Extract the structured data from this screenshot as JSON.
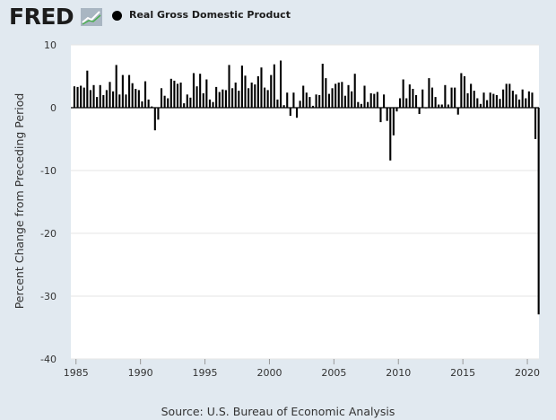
{
  "header": {
    "logo_text": "FRED",
    "legend_label": "Real Gross Domestic Product",
    "legend_color": "#000000"
  },
  "icons": {
    "logo": "fred-chart-logo-icon"
  },
  "source": "Source: U.S. Bureau of Economic Analysis",
  "chart_data": {
    "type": "bar",
    "xlabel": "",
    "ylabel": "Percent Change from Preceding Period",
    "ylim": [
      -40,
      10
    ],
    "yticks": [
      10,
      0,
      -10,
      -20,
      -30,
      -40
    ],
    "xlim": [
      1984.6,
      2020.9
    ],
    "xticks": [
      1985,
      1990,
      1995,
      2000,
      2005,
      2010,
      2015,
      2020
    ],
    "grid": true,
    "legend_position": "top-left",
    "bar_color": "#000000",
    "start_year": 1984,
    "start_quarter": 4,
    "series": [
      {
        "name": "Real Gross Domestic Product",
        "values": [
          3.4,
          3.3,
          3.5,
          3.2,
          5.9,
          2.8,
          3.6,
          1.7,
          3.6,
          2.0,
          2.8,
          4.1,
          2.6,
          6.8,
          2.1,
          5.2,
          2.1,
          5.2,
          3.9,
          3.0,
          2.8,
          1.0,
          4.2,
          1.3,
          0.2,
          -3.6,
          -1.9,
          3.1,
          1.9,
          1.5,
          4.6,
          4.3,
          3.8,
          4.0,
          0.7,
          2.1,
          1.6,
          5.5,
          3.4,
          5.4,
          2.3,
          4.5,
          1.3,
          0.9,
          3.3,
          2.5,
          2.9,
          2.8,
          6.8,
          3.1,
          4.0,
          2.7,
          6.7,
          5.1,
          3.1,
          4.0,
          3.7,
          5.0,
          6.4,
          3.2,
          2.8,
          5.2,
          6.9,
          1.3,
          7.5,
          0.4,
          2.4,
          -1.3,
          2.4,
          -1.6,
          1.1,
          3.5,
          2.4,
          1.7,
          0.3,
          2.1,
          2.0,
          7.0,
          4.7,
          2.2,
          3.1,
          3.8,
          4.0,
          4.1,
          1.9,
          3.6,
          2.6,
          5.4,
          0.9,
          0.6,
          3.5,
          0.9,
          2.3,
          2.2,
          2.5,
          -2.3,
          2.1,
          -2.1,
          -8.4,
          -4.4,
          -0.6,
          1.5,
          4.5,
          1.5,
          3.7,
          3.0,
          2.0,
          -1.0,
          2.9,
          -0.1,
          4.7,
          3.2,
          1.7,
          0.5,
          0.5,
          3.6,
          0.5,
          3.2,
          3.2,
          -1.1,
          5.5,
          5.0,
          2.3,
          3.8,
          2.7,
          1.5,
          0.6,
          2.4,
          1.2,
          2.4,
          2.2,
          2.0,
          1.4,
          2.9,
          3.8,
          3.8,
          2.7,
          2.1,
          1.3,
          2.9,
          1.5,
          2.6,
          2.4,
          -5.0,
          -32.9
        ]
      }
    ]
  }
}
